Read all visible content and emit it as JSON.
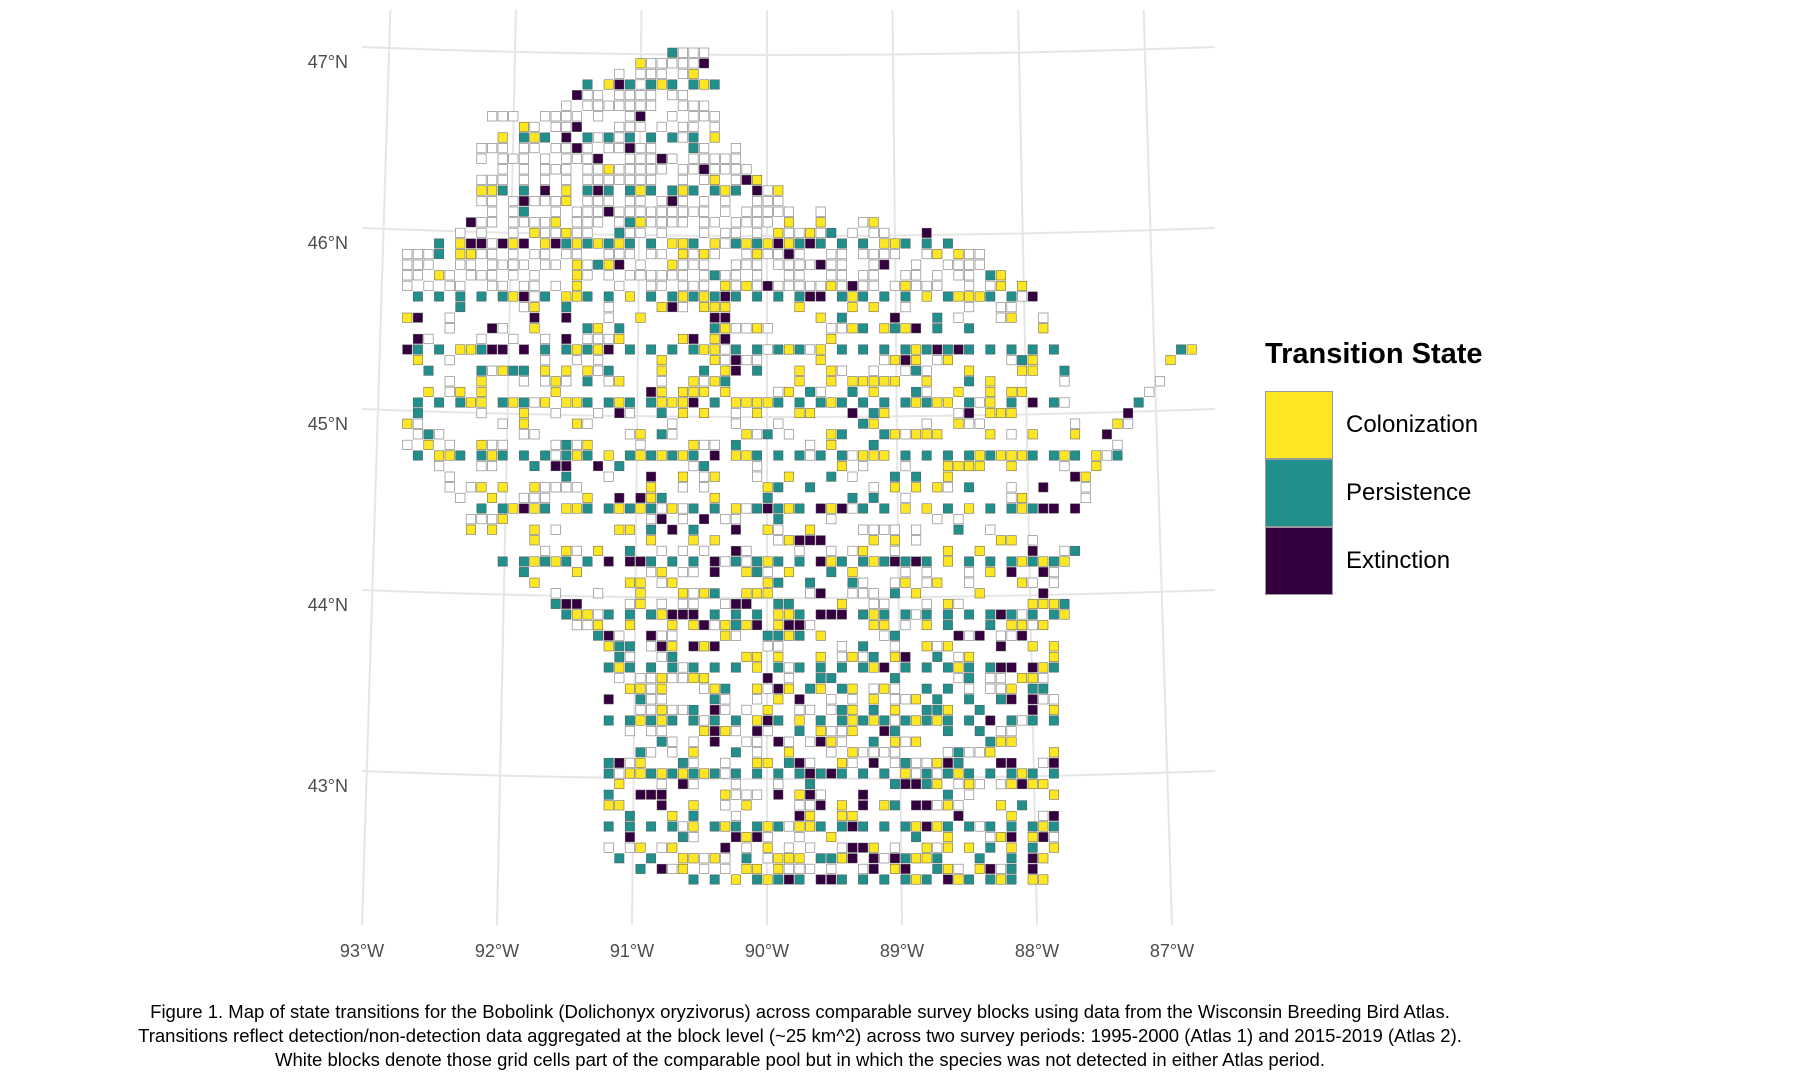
{
  "legend": {
    "title": "Transition State",
    "items": [
      {
        "key": "colonization",
        "label": "Colonization",
        "color": "#FDE725"
      },
      {
        "key": "persistence",
        "label": "Persistence",
        "color": "#21908C"
      },
      {
        "key": "extinction",
        "label": "Extinction",
        "color": "#35003F"
      }
    ],
    "empty_color": "#FFFFFF",
    "empty_border": "#8c8c8c",
    "grid_color": "#e6e6e6"
  },
  "axes": {
    "lat_labels": [
      "47°N",
      "46°N",
      "45°N",
      "44°N",
      "43°N"
    ],
    "lon_labels": [
      "93°W",
      "92°W",
      "91°W",
      "90°W",
      "89°W",
      "88°W",
      "87°W"
    ]
  },
  "caption": {
    "line1": "Figure 1. Map of state transitions for the Bobolink (Dolichonyx oryzivorus) across comparable survey blocks using data from the Wisconsin Breeding Bird Atlas.",
    "line2": "Transitions reflect detection/non-detection data aggregated at the block level (~25 km^2) across two survey periods: 1995-2000 (Atlas 1) and 2015-2019 (Atlas 2).",
    "line3": "White blocks denote those grid cells part of the comparable pool but in which the species was not detected in either Atlas period."
  }
}
